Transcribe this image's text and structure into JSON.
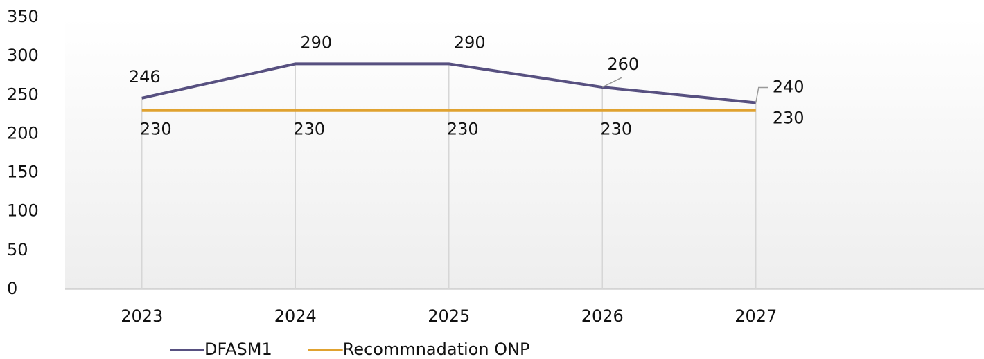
{
  "chart_data": {
    "type": "line",
    "categories": [
      "2023",
      "2024",
      "2025",
      "2026",
      "2027"
    ],
    "series": [
      {
        "name": "DFASM1",
        "color": "#575080",
        "values": [
          246,
          290,
          290,
          260,
          240
        ]
      },
      {
        "name": "Recommnadation ONP",
        "color": "#e0a230",
        "values": [
          230,
          230,
          230,
          230,
          230
        ]
      }
    ],
    "ylim": [
      0,
      350
    ],
    "yticks": [
      0,
      50,
      100,
      150,
      200,
      250,
      300,
      350
    ],
    "legend": "bottom"
  }
}
